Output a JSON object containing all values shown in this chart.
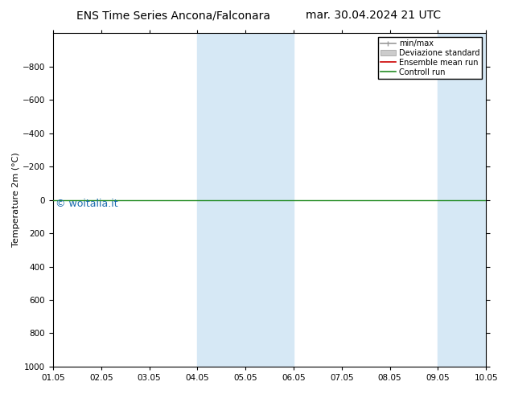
{
  "title_left": "ENS Time Series Ancona/Falconara",
  "title_right": "mar. 30.04.2024 21 UTC",
  "ylabel": "Temperature 2m (°C)",
  "ylim_top": -1000,
  "ylim_bottom": 1000,
  "yticks": [
    -800,
    -600,
    -400,
    -200,
    0,
    200,
    400,
    600,
    800,
    1000
  ],
  "x_start_num": 0,
  "x_end_num": 9,
  "xtick_positions": [
    0,
    1,
    2,
    3,
    4,
    5,
    6,
    7,
    8,
    9
  ],
  "xtick_labels": [
    "01.05",
    "02.05",
    "03.05",
    "04.05",
    "05.05",
    "06.05",
    "07.05",
    "08.05",
    "09.05",
    "10.05"
  ],
  "shaded_regions": [
    [
      3.0,
      4.0
    ],
    [
      4.0,
      5.0
    ],
    [
      8.0,
      9.0
    ],
    [
      9.0,
      10.0
    ]
  ],
  "shade_color": "#d6e8f5",
  "watermark": "© woitalia.it",
  "watermark_color": "#1a6bad",
  "watermark_fontsize": 9,
  "flat_line_y": 0,
  "control_run_color": "#228b22",
  "ensemble_mean_color": "#cc0000",
  "minmax_color": "#999999",
  "std_color": "#cccccc",
  "legend_entries": [
    "min/max",
    "Deviazione standard",
    "Ensemble mean run",
    "Controll run"
  ],
  "legend_colors": [
    "#999999",
    "#cccccc",
    "#cc0000",
    "#228b22"
  ],
  "title_fontsize": 10,
  "axis_fontsize": 8,
  "tick_fontsize": 7.5
}
